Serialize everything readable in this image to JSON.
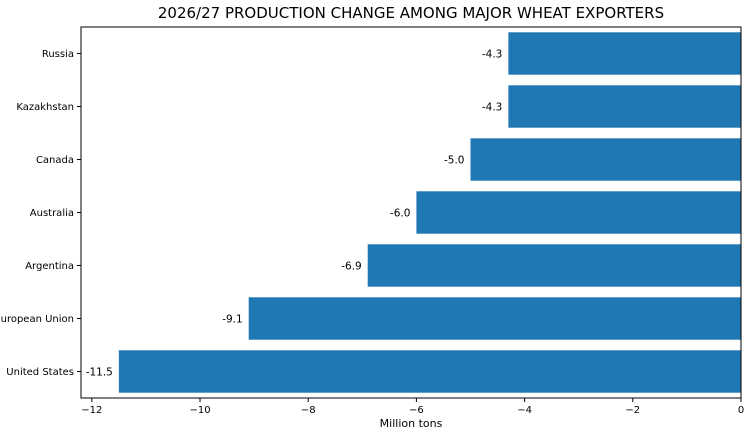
{
  "chart_data": {
    "type": "bar",
    "orientation": "horizontal",
    "title": "2026/27 PRODUCTION CHANGE AMONG MAJOR WHEAT EXPORTERS",
    "xlabel": "Million tons",
    "ylabel": "",
    "xlim": [
      -12.2,
      0
    ],
    "categories": [
      "Russia",
      "Kazakhstan",
      "Canada",
      "Australia",
      "Argentina",
      "European Union",
      "United States"
    ],
    "values": [
      -4.3,
      -4.3,
      -5.0,
      -6.0,
      -6.9,
      -9.1,
      -11.5
    ],
    "value_labels": [
      "-4.3",
      "-4.3",
      "-5.0",
      "-6.0",
      "-6.9",
      "-9.1",
      "-11.5"
    ],
    "x_ticks": [
      {
        "value": -12,
        "label": "−12"
      },
      {
        "value": -10,
        "label": "−10"
      },
      {
        "value": -8,
        "label": "−8"
      },
      {
        "value": -6,
        "label": "−6"
      },
      {
        "value": -4,
        "label": "−4"
      },
      {
        "value": -2,
        "label": "−2"
      },
      {
        "value": 0,
        "label": "0"
      }
    ],
    "bar_color": "#1f77b4",
    "grid": false,
    "legend": "none"
  }
}
